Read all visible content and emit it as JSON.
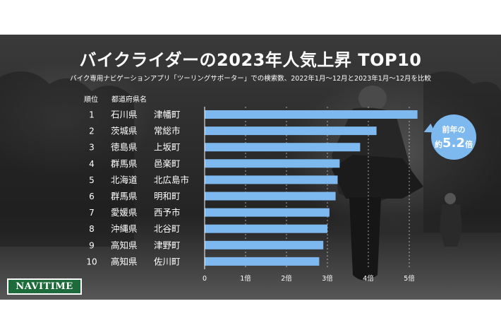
{
  "title": "バイクライダーの2023年人気上昇 TOP10",
  "subtitle": "バイク専用ナビゲーションアプリ「ツーリングサポーター」での検索数、2022年1月～12月と2023年1月～12月を比較",
  "headers": {
    "rank": "順位",
    "region": "都道府県名"
  },
  "callout": {
    "line1": "前年の",
    "prefix": "約",
    "value": "5.2",
    "suffix": "倍"
  },
  "logo": "NAVITIME",
  "colors": {
    "bar": "#7db8ef",
    "logo_bg": "#1d6b3b"
  },
  "chart_data": {
    "type": "bar",
    "orientation": "horizontal",
    "title": "バイクライダーの2023年人気上昇 TOP10",
    "categories": [
      {
        "rank": "1",
        "prefecture": "石川県",
        "city": "津幡町"
      },
      {
        "rank": "2",
        "prefecture": "茨城県",
        "city": "常総市"
      },
      {
        "rank": "3",
        "prefecture": "徳島県",
        "city": "上坂町"
      },
      {
        "rank": "4",
        "prefecture": "群馬県",
        "city": "邑楽町"
      },
      {
        "rank": "5",
        "prefecture": "北海道",
        "city": "北広島市"
      },
      {
        "rank": "6",
        "prefecture": "群馬県",
        "city": "明和町"
      },
      {
        "rank": "7",
        "prefecture": "愛媛県",
        "city": "西予市"
      },
      {
        "rank": "8",
        "prefecture": "沖縄県",
        "city": "北谷町"
      },
      {
        "rank": "9",
        "prefecture": "高知県",
        "city": "津野町"
      },
      {
        "rank": "10",
        "prefecture": "高知県",
        "city": "佐川町"
      }
    ],
    "values": [
      5.2,
      4.2,
      3.8,
      3.3,
      3.25,
      3.2,
      3.05,
      3.0,
      2.9,
      2.8
    ],
    "xlim": [
      0,
      5
    ],
    "xticks": [
      "0",
      "1倍",
      "2倍",
      "3倍",
      "4倍",
      "5倍"
    ],
    "grid": true,
    "legend": "none"
  }
}
